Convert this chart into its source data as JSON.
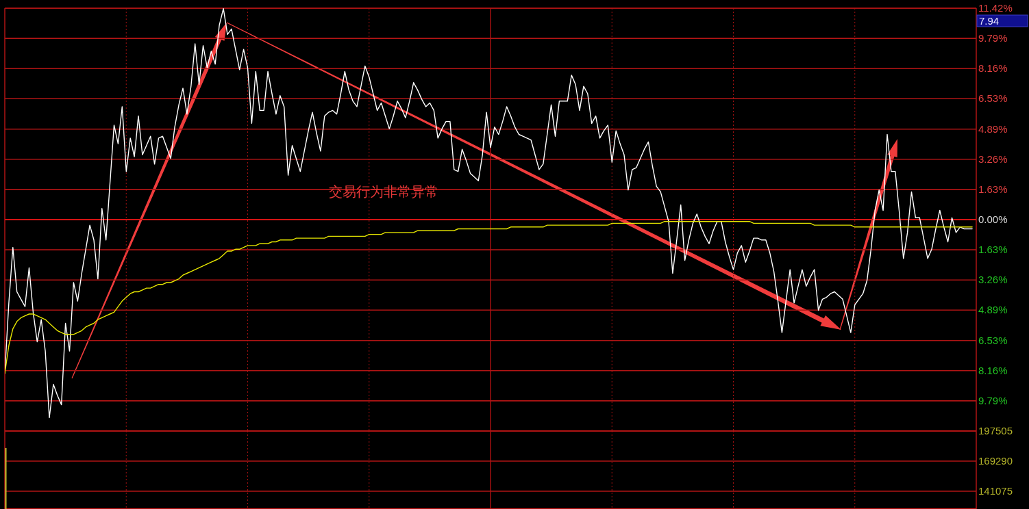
{
  "chart_data": [
    {
      "type": "line",
      "categories": [
        null,
        null,
        null,
        null,
        null,
        null,
        null,
        null,
        null,
        null,
        null,
        null,
        null,
        null,
        null,
        null,
        null,
        null,
        null,
        null,
        null,
        null,
        null,
        null,
        null,
        null,
        null,
        null,
        null,
        null,
        null,
        null,
        null,
        null,
        null,
        null,
        null,
        null,
        null,
        null,
        null,
        null,
        null,
        null,
        null,
        null,
        null,
        null,
        null,
        null,
        null,
        null,
        null,
        null,
        null,
        null,
        null,
        null,
        null,
        null,
        null,
        null,
        null,
        null,
        null,
        null,
        null,
        null,
        null,
        null,
        null,
        null,
        null,
        null,
        null,
        null,
        null,
        null,
        null,
        null,
        null,
        null,
        null,
        null,
        null,
        null,
        null,
        null,
        null,
        null,
        null,
        null,
        null,
        null,
        null,
        null,
        null,
        null,
        null,
        null,
        null,
        null,
        null,
        null,
        null,
        null,
        null,
        null,
        null,
        null,
        null,
        null,
        null,
        null,
        null,
        null,
        null,
        null,
        null,
        null,
        null,
        null,
        null,
        null,
        null,
        null,
        null,
        null,
        null,
        null,
        null,
        null,
        null,
        null,
        null,
        null,
        null,
        null,
        null,
        null,
        null,
        null,
        null,
        null,
        null,
        null,
        null,
        null,
        null,
        null,
        null,
        null,
        null,
        null,
        null,
        null,
        null,
        null,
        null,
        null,
        null,
        null,
        null,
        null,
        null,
        null,
        null,
        null,
        null,
        null,
        null,
        null,
        null,
        null,
        null,
        null,
        null,
        null,
        null,
        null,
        null,
        null,
        null,
        null,
        null,
        null,
        null,
        null,
        null,
        null,
        null,
        null,
        null,
        null,
        null,
        null,
        null,
        null,
        null,
        null,
        null,
        null,
        null,
        null,
        null,
        null,
        null,
        null,
        null,
        null,
        null,
        null,
        null,
        null,
        null,
        null,
        null,
        null,
        null,
        null,
        null,
        null,
        null,
        null,
        null,
        null,
        null,
        null,
        null,
        null,
        null,
        null,
        null,
        null,
        null,
        null,
        null,
        null,
        null,
        null,
        null
      ],
      "series": [
        {
          "color": "#ffffff",
          "values": [
            -8.3,
            -4.5,
            -1.5,
            -3.9,
            -4.3,
            -4.7,
            -2.6,
            -5.0,
            -6.6,
            -5.4,
            -7.1,
            -10.7,
            -8.9,
            -9.5,
            -10.0,
            -5.6,
            -7.1,
            -3.4,
            -4.4,
            -2.9,
            -1.6,
            -0.3,
            -1.1,
            -3.2,
            0.6,
            -1.1,
            2.0,
            5.1,
            4.1,
            6.1,
            2.6,
            4.4,
            3.4,
            5.6,
            3.5,
            4.0,
            4.5,
            3.0,
            4.4,
            4.5,
            3.9,
            3.3,
            5.0,
            6.2,
            7.1,
            5.7,
            7.2,
            9.5,
            7.3,
            9.4,
            8.2,
            9.1,
            8.4,
            10.5,
            11.4,
            10.0,
            10.3,
            9.2,
            8.1,
            9.2,
            8.2,
            5.2,
            8.0,
            5.9,
            5.9,
            8.0,
            6.8,
            5.7,
            6.7,
            6.1,
            2.4,
            4.0,
            3.3,
            2.6,
            3.7,
            4.8,
            5.8,
            4.7,
            3.7,
            5.6,
            5.8,
            5.9,
            5.7,
            6.8,
            8.0,
            7.0,
            6.4,
            6.1,
            7.2,
            8.3,
            7.7,
            6.8,
            5.9,
            6.3,
            5.6,
            4.9,
            5.6,
            6.4,
            6.0,
            5.5,
            6.4,
            7.4,
            7.0,
            6.5,
            6.1,
            6.3,
            5.9,
            4.4,
            4.9,
            5.3,
            5.3,
            2.7,
            2.6,
            3.8,
            3.2,
            2.5,
            2.3,
            2.1,
            3.5,
            5.8,
            3.9,
            5.0,
            4.6,
            5.3,
            6.1,
            5.6,
            5.0,
            4.6,
            4.5,
            4.4,
            4.3,
            3.5,
            2.7,
            3.0,
            4.6,
            6.2,
            4.5,
            6.4,
            6.4,
            6.4,
            7.8,
            7.3,
            5.9,
            7.2,
            6.8,
            5.2,
            5.6,
            4.4,
            4.8,
            5.1,
            3.1,
            4.8,
            4.1,
            3.5,
            1.6,
            2.7,
            2.8,
            3.3,
            3.8,
            4.2,
            2.9,
            1.8,
            1.5,
            0.7,
            -0.1,
            -2.9,
            -1.1,
            0.8,
            -2.2,
            -1.1,
            -0.2,
            0.3,
            -0.4,
            -0.9,
            -1.3,
            -0.6,
            -0.1,
            -0.1,
            -1.2,
            -2.0,
            -2.7,
            -1.8,
            -1.4,
            -2.3,
            -1.7,
            -1.0,
            -1.0,
            -1.1,
            -1.1,
            -1.8,
            -2.8,
            -4.4,
            -6.1,
            -4.4,
            -2.7,
            -4.5,
            -3.6,
            -2.7,
            -3.6,
            -3.1,
            -2.7,
            -4.9,
            -4.3,
            -4.2,
            -4.0,
            -3.9,
            -4.1,
            -4.3,
            -5.2,
            -6.1,
            -4.6,
            -4.3,
            -4.0,
            -3.3,
            -1.6,
            0.5,
            1.6,
            0.5,
            4.6,
            2.6,
            2.6,
            0.4,
            -2.1,
            -0.7,
            1.5,
            0.1,
            0.1,
            -1.0,
            -2.1,
            -1.6,
            -0.5,
            0.5,
            -0.4,
            -1.2,
            0.1,
            -0.7,
            -0.4,
            -0.5,
            -0.5,
            -0.5,
            null
          ]
        },
        {
          "color": "#e6e600",
          "values": [
            -8.3,
            -6.8,
            -5.9,
            -5.5,
            -5.3,
            -5.2,
            -5.1,
            -5.1,
            -5.2,
            -5.3,
            -5.4,
            -5.6,
            -5.8,
            -6.0,
            -6.1,
            -6.2,
            -6.2,
            -6.2,
            -6.1,
            -6.0,
            -5.8,
            -5.7,
            -5.6,
            -5.4,
            -5.3,
            -5.2,
            -5.1,
            -5.0,
            -4.7,
            -4.4,
            -4.2,
            -4.0,
            -3.9,
            -3.9,
            -3.8,
            -3.7,
            -3.7,
            -3.6,
            -3.5,
            -3.5,
            -3.4,
            -3.4,
            -3.3,
            -3.2,
            -3.0,
            -2.9,
            -2.8,
            -2.7,
            -2.6,
            -2.5,
            -2.4,
            -2.3,
            -2.2,
            -2.1,
            -1.9,
            -1.7,
            -1.7,
            -1.6,
            -1.6,
            -1.5,
            -1.4,
            -1.4,
            -1.4,
            -1.3,
            -1.3,
            -1.3,
            -1.2,
            -1.2,
            -1.1,
            -1.1,
            -1.1,
            -1.1,
            -1.0,
            -1.0,
            -1.0,
            -1.0,
            -1.0,
            -1.0,
            -1.0,
            -1.0,
            -0.9,
            -0.9,
            -0.9,
            -0.9,
            -0.9,
            -0.9,
            -0.9,
            -0.9,
            -0.9,
            -0.9,
            -0.8,
            -0.8,
            -0.8,
            -0.8,
            -0.7,
            -0.7,
            -0.7,
            -0.7,
            -0.7,
            -0.7,
            -0.7,
            -0.7,
            -0.6,
            -0.6,
            -0.6,
            -0.6,
            -0.6,
            -0.6,
            -0.6,
            -0.6,
            -0.6,
            -0.6,
            -0.5,
            -0.5,
            -0.5,
            -0.5,
            -0.5,
            -0.5,
            -0.5,
            -0.5,
            -0.5,
            -0.5,
            -0.5,
            -0.5,
            -0.5,
            -0.4,
            -0.4,
            -0.4,
            -0.4,
            -0.4,
            -0.4,
            -0.4,
            -0.4,
            -0.4,
            -0.3,
            -0.3,
            -0.3,
            -0.3,
            -0.3,
            -0.3,
            -0.3,
            -0.3,
            -0.3,
            -0.3,
            -0.3,
            -0.3,
            -0.3,
            -0.3,
            -0.3,
            -0.3,
            -0.2,
            -0.2,
            -0.2,
            -0.2,
            -0.2,
            -0.2,
            -0.2,
            -0.2,
            -0.2,
            -0.2,
            -0.2,
            -0.2,
            -0.2,
            -0.1,
            -0.1,
            -0.1,
            -0.1,
            -0.1,
            -0.1,
            -0.1,
            -0.1,
            -0.1,
            -0.1,
            -0.1,
            -0.1,
            -0.1,
            -0.1,
            -0.1,
            -0.1,
            -0.1,
            -0.1,
            -0.1,
            -0.1,
            -0.1,
            -0.1,
            -0.2,
            -0.2,
            -0.2,
            -0.2,
            -0.2,
            -0.2,
            -0.2,
            -0.2,
            -0.2,
            -0.2,
            -0.2,
            -0.2,
            -0.2,
            -0.2,
            -0.2,
            -0.3,
            -0.3,
            -0.3,
            -0.3,
            -0.3,
            -0.3,
            -0.3,
            -0.3,
            -0.3,
            -0.3,
            -0.4,
            -0.4,
            -0.4,
            -0.4,
            -0.4,
            -0.4,
            -0.4,
            -0.4,
            -0.4,
            -0.4,
            -0.4,
            -0.4,
            -0.4,
            -0.4,
            -0.4,
            -0.4,
            -0.4,
            -0.4,
            -0.4,
            -0.4,
            -0.4,
            -0.4,
            -0.4,
            -0.4,
            -0.4,
            -0.4,
            -0.4,
            -0.4,
            -0.4,
            -0.4,
            null
          ]
        }
      ],
      "ylim": [
        -11.42,
        11.42
      ],
      "yticks": [
        {
          "value": 11.42,
          "label": "11.42%"
        },
        {
          "value": 9.79,
          "label": "9.79%"
        },
        {
          "value": 8.16,
          "label": "8.16%"
        },
        {
          "value": 6.53,
          "label": "6.53%"
        },
        {
          "value": 4.89,
          "label": "4.89%"
        },
        {
          "value": 3.26,
          "label": "3.26%"
        },
        {
          "value": 1.63,
          "label": "1.63%"
        },
        {
          "value": 0,
          "label": "0.00%"
        },
        {
          "value": -1.63,
          "label": "1.63%"
        },
        {
          "value": -3.26,
          "label": "3.26%"
        },
        {
          "value": -4.89,
          "label": "4.89%"
        },
        {
          "value": -6.53,
          "label": "6.53%"
        },
        {
          "value": -8.16,
          "label": "8.16%"
        },
        {
          "value": -9.79,
          "label": "9.79%"
        }
      ],
      "grid": true,
      "ref_lines": [
        {
          "axis": "y",
          "value": 0,
          "color": "#d41414"
        }
      ],
      "line_style": "solid",
      "annotations": [
        "交易行为非常异常",
        "7.94"
      ]
    },
    {
      "type": "bar",
      "categories": [
        null,
        null,
        null,
        null,
        null,
        null,
        null,
        null,
        null,
        null,
        null,
        null,
        null,
        null,
        null,
        null,
        null,
        null,
        null,
        null,
        null,
        null,
        null,
        null,
        null,
        null,
        null,
        null,
        null,
        null,
        null,
        null,
        null,
        null,
        null,
        null,
        null,
        null,
        null,
        null,
        null,
        null,
        null,
        null,
        null,
        null,
        null,
        null,
        null,
        null,
        null,
        null,
        null,
        null,
        null,
        null,
        null,
        null,
        null,
        null,
        null,
        null,
        null,
        null,
        null,
        null,
        null,
        null,
        null,
        null,
        null,
        null,
        null,
        null,
        null,
        null,
        null,
        null,
        null,
        null,
        null,
        null,
        null,
        null,
        null,
        null,
        null,
        null,
        null,
        null,
        null,
        null,
        null,
        null,
        null,
        null,
        null,
        null,
        null,
        null,
        null,
        null,
        null,
        null,
        null,
        null,
        null,
        null,
        null,
        null,
        null,
        null,
        null,
        null,
        null,
        null,
        null,
        null,
        null,
        null,
        null,
        null,
        null,
        null,
        null,
        null,
        null,
        null,
        null,
        null,
        null,
        null,
        null,
        null,
        null,
        null,
        null,
        null,
        null,
        null,
        null,
        null,
        null,
        null,
        null,
        null,
        null,
        null,
        null,
        null,
        null,
        null,
        null,
        null,
        null,
        null,
        null,
        null,
        null,
        null,
        null,
        null,
        null,
        null,
        null,
        null,
        null,
        null,
        null,
        null,
        null,
        null,
        null,
        null,
        null,
        null,
        null,
        null,
        null,
        null,
        null,
        null,
        null,
        null,
        null,
        null,
        null,
        null,
        null,
        null,
        null,
        null,
        null,
        null,
        null,
        null,
        null,
        null,
        null,
        null,
        null,
        null,
        null,
        null,
        null,
        null,
        null,
        null,
        null,
        null,
        null,
        null,
        null,
        null,
        null,
        null,
        null,
        null,
        null,
        null,
        null,
        null,
        null,
        null,
        null,
        null,
        null,
        null,
        null,
        null,
        null,
        null,
        null,
        null,
        null,
        null,
        null,
        null,
        null,
        null,
        null
      ],
      "values": [
        181500,
        null,
        null,
        null,
        null,
        null,
        null,
        null,
        null,
        null,
        null,
        null,
        null,
        null,
        null,
        null,
        null,
        null,
        null,
        null,
        null,
        null,
        null,
        null,
        null,
        null,
        null,
        null,
        null,
        null,
        null,
        null,
        null,
        null,
        null,
        null,
        null,
        null,
        null,
        null,
        null,
        null,
        null,
        null,
        null,
        null,
        null,
        null,
        null,
        null,
        null,
        null,
        null,
        null,
        null,
        null,
        null,
        null,
        null,
        null,
        null,
        null,
        null,
        null,
        null,
        null,
        null,
        null,
        null,
        null,
        null,
        null,
        null,
        null,
        null,
        null,
        null,
        null,
        null,
        null,
        null,
        null,
        null,
        null,
        null,
        null,
        null,
        null,
        null,
        null,
        null,
        null,
        null,
        null,
        null,
        null,
        null,
        null,
        null,
        null,
        null,
        null,
        null,
        null,
        null,
        null,
        null,
        null,
        null,
        null,
        null,
        null,
        null,
        null,
        null,
        null,
        null,
        null,
        null,
        null,
        null,
        null,
        null,
        null,
        null,
        null,
        null,
        null,
        null,
        null,
        null,
        null,
        null,
        null,
        null,
        null,
        null,
        null,
        null,
        null,
        null,
        null,
        null,
        null,
        null,
        null,
        null,
        null,
        null,
        null,
        null,
        null,
        null,
        null,
        null,
        null,
        null,
        null,
        null,
        null,
        null,
        null,
        null,
        null,
        null,
        null,
        null,
        null,
        null,
        null,
        null,
        null,
        null,
        null,
        null,
        null,
        null,
        null,
        null,
        null,
        null,
        null,
        null,
        null,
        null,
        null,
        null,
        null,
        null,
        null,
        null,
        null,
        null,
        null,
        null,
        null,
        null,
        null,
        null,
        null,
        null,
        null,
        null,
        null,
        null,
        null,
        null,
        null,
        null,
        null,
        null,
        null,
        null,
        null,
        null,
        null,
        null,
        null,
        null,
        null,
        null,
        null,
        null,
        null,
        null,
        null,
        null,
        null,
        null,
        null,
        null,
        null,
        null,
        null,
        null,
        null,
        null,
        null,
        null,
        null,
        null
      ],
      "color": "#c8c832",
      "ylim": [
        124400,
        197505
      ],
      "yticks": [
        197505,
        169290,
        141075
      ],
      "grid": true
    }
  ]
}
